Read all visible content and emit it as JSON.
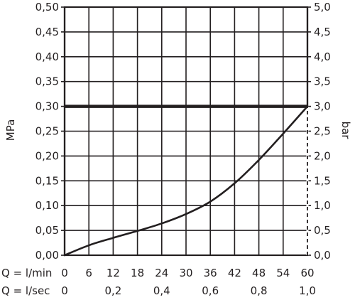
{
  "chart_data": {
    "type": "line",
    "ylabel": "MPa",
    "y2label": "bar",
    "ylim": [
      0,
      0.5
    ],
    "y2lim": [
      0,
      5.0
    ],
    "xlim": [
      0,
      60
    ],
    "grid": true,
    "y_ticks": [
      "0,00",
      "0,05",
      "0,10",
      "0,15",
      "0,20",
      "0,25",
      "0,30",
      "0,35",
      "0,40",
      "0,45",
      "0,50"
    ],
    "y2_ticks": [
      "0,0",
      "0,5",
      "1,0",
      "1,5",
      "2,0",
      "2,5",
      "3,0",
      "3,5",
      "4,0",
      "4,5",
      "5,0"
    ],
    "x_rows": [
      {
        "label": "Q = l/min",
        "ticks": [
          {
            "value": 0,
            "label": "0"
          },
          {
            "value": 6,
            "label": "6"
          },
          {
            "value": 12,
            "label": "12"
          },
          {
            "value": 18,
            "label": "18"
          },
          {
            "value": 24,
            "label": "24"
          },
          {
            "value": 30,
            "label": "30"
          },
          {
            "value": 36,
            "label": "36"
          },
          {
            "value": 42,
            "label": "42"
          },
          {
            "value": 48,
            "label": "48"
          },
          {
            "value": 54,
            "label": "54"
          },
          {
            "value": 60,
            "label": "60"
          }
        ]
      },
      {
        "label": "Q = l/sec",
        "ticks": [
          {
            "value": 0,
            "label": "0"
          },
          {
            "value": 12,
            "label": "0,2"
          },
          {
            "value": 24,
            "label": "0,4"
          },
          {
            "value": 36,
            "label": "0,6"
          },
          {
            "value": 48,
            "label": "0,8"
          },
          {
            "value": 60,
            "label": "1,0"
          }
        ]
      }
    ],
    "series": [
      {
        "values": [
          [
            0,
            0.0
          ],
          [
            6,
            0.02
          ],
          [
            12,
            0.035
          ],
          [
            18,
            0.049
          ],
          [
            24,
            0.064
          ],
          [
            30,
            0.083
          ],
          [
            36,
            0.108
          ],
          [
            42,
            0.145
          ],
          [
            48,
            0.192
          ],
          [
            54,
            0.245
          ],
          [
            60,
            0.3
          ]
        ]
      }
    ],
    "limit_line": {
      "y": 0.3
    },
    "marker_line": {
      "x": 60,
      "y_from": 0,
      "y_to": 0.3,
      "style": "dashed"
    },
    "colors": {
      "ink": "#231f20",
      "background": "#ffffff"
    }
  }
}
